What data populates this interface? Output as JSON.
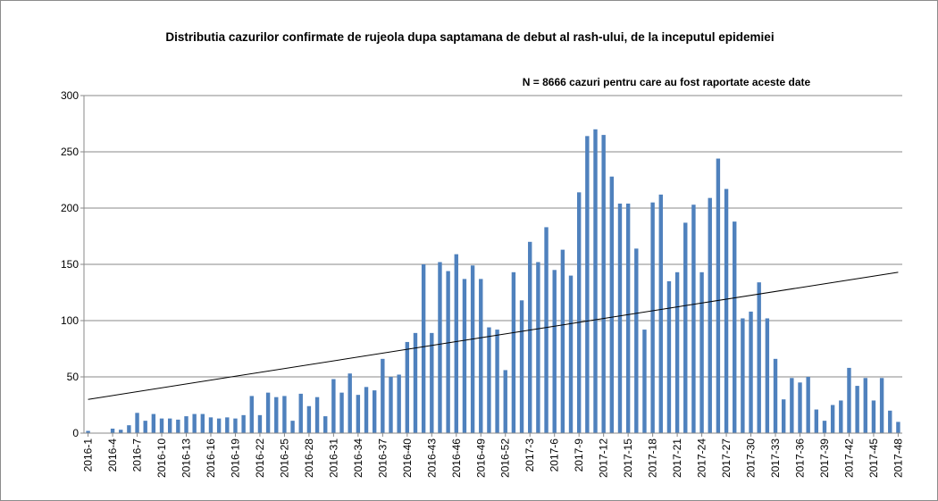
{
  "chart_data": {
    "type": "bar",
    "title": "Distributia cazurilor confirmate de rujeola dupa saptamana de debut al rash-ului, de la inceputul epidemiei",
    "annotation": "N = 8666 cazuri pentru care au fost raportate aceste date",
    "xlabel": "",
    "ylabel": "",
    "ylim": [
      0,
      300
    ],
    "yticks": [
      "0",
      "50",
      "100",
      "150",
      "200",
      "250",
      "300"
    ],
    "grid": true,
    "legend": "none",
    "bar_color": "#4f81bd",
    "trendline": {
      "type": "linear",
      "color": "#000000",
      "start_value": 30,
      "end_value": 143
    },
    "categories": [
      "2016-1",
      "2016-2",
      "2016-3",
      "2016-4",
      "2016-5",
      "2016-6",
      "2016-7",
      "2016-8",
      "2016-9",
      "2016-10",
      "2016-11",
      "2016-12",
      "2016-13",
      "2016-14",
      "2016-15",
      "2016-16",
      "2016-17",
      "2016-18",
      "2016-19",
      "2016-20",
      "2016-21",
      "2016-22",
      "2016-23",
      "2016-24",
      "2016-25",
      "2016-26",
      "2016-27",
      "2016-28",
      "2016-29",
      "2016-30",
      "2016-31",
      "2016-32",
      "2016-33",
      "2016-34",
      "2016-35",
      "2016-36",
      "2016-37",
      "2016-38",
      "2016-39",
      "2016-40",
      "2016-41",
      "2016-42",
      "2016-43",
      "2016-44",
      "2016-45",
      "2016-46",
      "2016-47",
      "2016-48",
      "2016-49",
      "2016-50",
      "2016-51",
      "2016-52",
      "2017-1",
      "2017-2",
      "2017-3",
      "2017-4",
      "2017-5",
      "2017-6",
      "2017-7",
      "2017-8",
      "2017-9",
      "2017-10",
      "2017-11",
      "2017-12",
      "2017-13",
      "2017-14",
      "2017-15",
      "2017-16",
      "2017-17",
      "2017-18",
      "2017-19",
      "2017-20",
      "2017-21",
      "2017-22",
      "2017-23",
      "2017-24",
      "2017-25",
      "2017-26",
      "2017-27",
      "2017-28",
      "2017-29",
      "2017-30",
      "2017-31",
      "2017-32",
      "2017-33",
      "2017-34",
      "2017-35",
      "2017-36",
      "2017-37",
      "2017-38",
      "2017-39",
      "2017-40",
      "2017-41",
      "2017-42",
      "2017-43",
      "2017-44",
      "2017-45",
      "2017-46",
      "2017-47",
      "2017-48"
    ],
    "tick_labels": [
      "2016-1",
      "2016-4",
      "2016-7",
      "2016-10",
      "2016-13",
      "2016-16",
      "2016-19",
      "2016-22",
      "2016-25",
      "2016-28",
      "2016-31",
      "2016-34",
      "2016-37",
      "2016-40",
      "2016-43",
      "2016-46",
      "2016-49",
      "2016-52",
      "2017-3",
      "2017-6",
      "2017-9",
      "2017-12",
      "2017-15",
      "2017-18",
      "2017-21",
      "2017-24",
      "2017-27",
      "2017-30",
      "2017-33",
      "2017-36",
      "2017-39",
      "2017-42",
      "2017-45",
      "2017-48"
    ],
    "values": [
      2,
      0,
      0,
      4,
      3,
      7,
      18,
      11,
      17,
      13,
      13,
      12,
      15,
      17,
      17,
      14,
      13,
      14,
      13,
      16,
      33,
      16,
      36,
      32,
      33,
      11,
      35,
      24,
      32,
      15,
      48,
      36,
      53,
      34,
      41,
      38,
      66,
      50,
      52,
      81,
      89,
      150,
      89,
      152,
      144,
      159,
      137,
      149,
      137,
      94,
      92,
      56,
      143,
      118,
      170,
      152,
      183,
      145,
      163,
      140,
      214,
      264,
      270,
      265,
      228,
      204,
      204,
      164,
      92,
      205,
      212,
      135,
      143,
      187,
      203,
      143,
      209,
      244,
      217,
      188,
      102,
      108,
      134,
      102,
      66,
      30,
      49,
      45,
      50,
      21,
      11,
      25,
      29,
      58,
      42,
      49,
      29,
      49,
      20,
      10
    ]
  }
}
